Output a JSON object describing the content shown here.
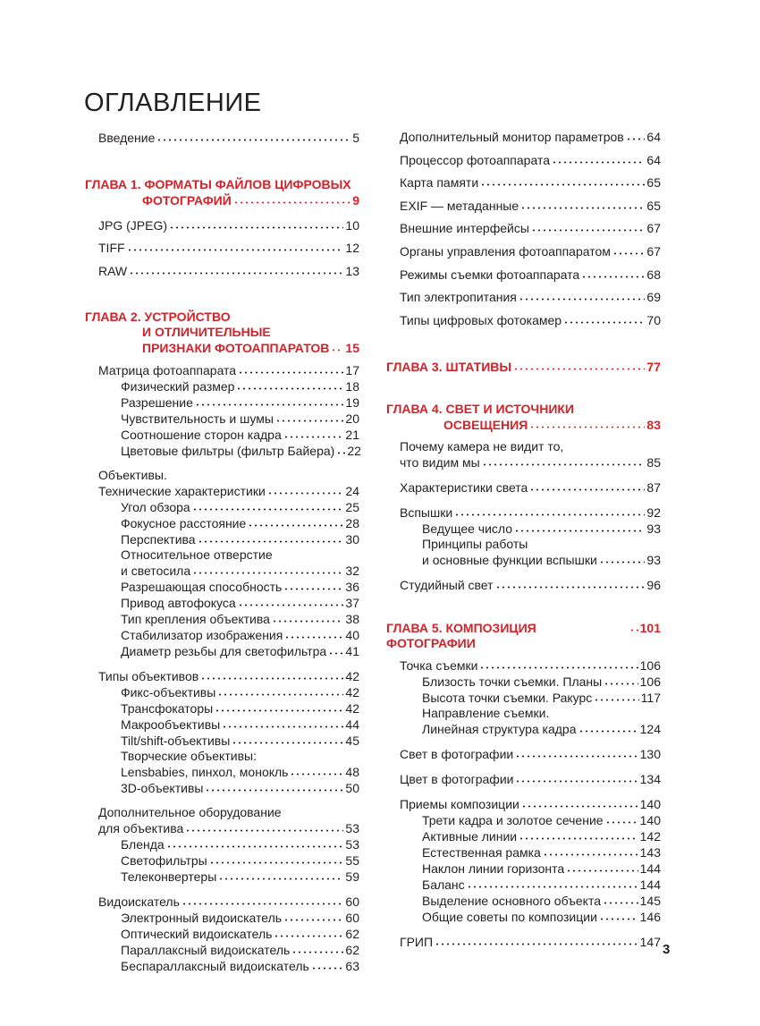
{
  "title": "ОГЛАВЛЕНИЕ",
  "page_number": "3",
  "accent_color": "#d2232a",
  "left": [
    {
      "type": "group",
      "style": "spaced",
      "entries": [
        {
          "level": 0,
          "lines": [
            "Введение"
          ],
          "page": "5"
        }
      ]
    },
    {
      "type": "chapter",
      "lines": [
        "ГЛАВА 1. ФОРМАТЫ ФАЙЛОВ ЦИФРОВЫХ",
        "ФОТОГРАФИЙ"
      ],
      "page": "9"
    },
    {
      "type": "group",
      "style": "spaced",
      "entries": [
        {
          "level": 0,
          "lines": [
            "JPG (JPEG)"
          ],
          "page": "10"
        },
        {
          "level": 0,
          "lines": [
            "TIFF"
          ],
          "page": "12"
        },
        {
          "level": 0,
          "lines": [
            "RAW"
          ],
          "page": "13"
        }
      ]
    },
    {
      "type": "chapter",
      "lines": [
        "ГЛАВА 2. УСТРОЙСТВО",
        "И ОТЛИЧИТЕЛЬНЫЕ",
        "ПРИЗНАКИ ФОТОАППАРАТОВ"
      ],
      "page": "15"
    },
    {
      "type": "group",
      "style": "dense",
      "entries": [
        {
          "level": 0,
          "lines": [
            "Матрица фотоаппарата"
          ],
          "page": "17"
        },
        {
          "level": 1,
          "lines": [
            "Физический размер"
          ],
          "page": "18"
        },
        {
          "level": 1,
          "lines": [
            "Разрешение"
          ],
          "page": "19"
        },
        {
          "level": 1,
          "lines": [
            "Чувствительность и шумы"
          ],
          "page": "20"
        },
        {
          "level": 1,
          "lines": [
            "Соотношение сторон кадра"
          ],
          "page": "21"
        },
        {
          "level": 1,
          "lines": [
            "Цветовые фильтры (фильтр Байера)"
          ],
          "page": "22"
        }
      ]
    },
    {
      "type": "group",
      "style": "dense",
      "entries": [
        {
          "level": 0,
          "lines": [
            "Объективы.",
            "Технические характеристики"
          ],
          "page": "24"
        },
        {
          "level": 1,
          "lines": [
            "Угол обзора"
          ],
          "page": "25"
        },
        {
          "level": 1,
          "lines": [
            "Фокусное расстояние"
          ],
          "page": "28"
        },
        {
          "level": 1,
          "lines": [
            "Перспектива"
          ],
          "page": "30"
        },
        {
          "level": 1,
          "lines": [
            "Относительное отверстие",
            "и светосила"
          ],
          "page": "32"
        },
        {
          "level": 1,
          "lines": [
            "Разрешающая способность"
          ],
          "page": "36"
        },
        {
          "level": 1,
          "lines": [
            "Привод автофокуса"
          ],
          "page": "37"
        },
        {
          "level": 1,
          "lines": [
            "Тип крепления объектива"
          ],
          "page": "38"
        },
        {
          "level": 1,
          "lines": [
            "Стабилизатор изображения"
          ],
          "page": "40"
        },
        {
          "level": 1,
          "lines": [
            "Диаметр резьбы для светофильтра"
          ],
          "page": "41"
        }
      ]
    },
    {
      "type": "group",
      "style": "dense",
      "entries": [
        {
          "level": 0,
          "lines": [
            "Типы объективов"
          ],
          "page": "42"
        },
        {
          "level": 1,
          "lines": [
            "Фикс-объективы"
          ],
          "page": "42"
        },
        {
          "level": 1,
          "lines": [
            "Трансфокаторы"
          ],
          "page": "42"
        },
        {
          "level": 1,
          "lines": [
            "Макрообъективы"
          ],
          "page": "44"
        },
        {
          "level": 1,
          "lines": [
            "Tilt/shift-объективы"
          ],
          "page": "45"
        },
        {
          "level": 1,
          "lines": [
            "Творческие объективы:",
            "Lensbabies, пинхол, монокль"
          ],
          "page": "48"
        },
        {
          "level": 1,
          "lines": [
            "3D-объективы"
          ],
          "page": "50"
        }
      ]
    },
    {
      "type": "group",
      "style": "dense",
      "entries": [
        {
          "level": 0,
          "lines": [
            "Дополнительное оборудование",
            "для объектива"
          ],
          "page": "53"
        },
        {
          "level": 1,
          "lines": [
            "Бленда"
          ],
          "page": "53"
        },
        {
          "level": 1,
          "lines": [
            "Светофильтры"
          ],
          "page": "55"
        },
        {
          "level": 1,
          "lines": [
            "Телеконвертеры"
          ],
          "page": "59"
        }
      ]
    },
    {
      "type": "group",
      "style": "dense",
      "entries": [
        {
          "level": 0,
          "lines": [
            "Видоискатель"
          ],
          "page": "60"
        },
        {
          "level": 1,
          "lines": [
            "Электронный видоискатель"
          ],
          "page": "60"
        },
        {
          "level": 1,
          "lines": [
            "Оптический видоискатель"
          ],
          "page": "62"
        },
        {
          "level": 1,
          "lines": [
            "Параллаксный видоискатель"
          ],
          "page": "62"
        },
        {
          "level": 1,
          "lines": [
            "Беспараллаксный видоискатель"
          ],
          "page": "63"
        }
      ]
    }
  ],
  "right": [
    {
      "type": "group",
      "style": "spaced",
      "entries": [
        {
          "level": 0,
          "lines": [
            "Дополнительный монитор параметров"
          ],
          "page": "64"
        },
        {
          "level": 0,
          "lines": [
            "Процессор фотоаппарата"
          ],
          "page": "64"
        },
        {
          "level": 0,
          "lines": [
            "Карта памяти"
          ],
          "page": "65"
        },
        {
          "level": 0,
          "lines": [
            "EXIF — метаданные"
          ],
          "page": "65"
        },
        {
          "level": 0,
          "lines": [
            "Внешние интерфейсы"
          ],
          "page": "67"
        },
        {
          "level": 0,
          "lines": [
            "Органы управления фотоаппаратом"
          ],
          "page": "67"
        },
        {
          "level": 0,
          "lines": [
            "Режимы съемки фотоаппарата"
          ],
          "page": "68"
        },
        {
          "level": 0,
          "lines": [
            "Тип электропитания"
          ],
          "page": "69"
        },
        {
          "level": 0,
          "lines": [
            "Типы цифровых фотокамер"
          ],
          "page": "70"
        }
      ]
    },
    {
      "type": "chapter",
      "lines": [
        "ГЛАВА 3. ШТАТИВЫ"
      ],
      "page": "77"
    },
    {
      "type": "chapter",
      "lines": [
        "ГЛАВА 4. СВЕТ И ИСТОЧНИКИ",
        "ОСВЕЩЕНИЯ"
      ],
      "page": "83"
    },
    {
      "type": "group",
      "style": "dense",
      "entries": [
        {
          "level": 0,
          "lines": [
            "Почему камера не видит то,",
            "что видим мы"
          ],
          "page": "85"
        }
      ]
    },
    {
      "type": "group",
      "style": "dense",
      "entries": [
        {
          "level": 0,
          "lines": [
            "Характеристики света"
          ],
          "page": "87"
        }
      ]
    },
    {
      "type": "group",
      "style": "dense",
      "entries": [
        {
          "level": 0,
          "lines": [
            "Вспышки"
          ],
          "page": "92"
        },
        {
          "level": 1,
          "lines": [
            "Ведущее число"
          ],
          "page": "93"
        },
        {
          "level": 1,
          "lines": [
            "Принципы работы",
            "и основные функции вспышки"
          ],
          "page": "93"
        }
      ]
    },
    {
      "type": "group",
      "style": "dense",
      "entries": [
        {
          "level": 0,
          "lines": [
            "Студийный свет"
          ],
          "page": "96"
        }
      ]
    },
    {
      "type": "chapter",
      "lines": [
        "ГЛАВА 5. КОМПОЗИЦИЯ ФОТОГРАФИИ"
      ],
      "page": "101"
    },
    {
      "type": "group",
      "style": "dense",
      "entries": [
        {
          "level": 0,
          "lines": [
            "Точка съемки"
          ],
          "page": "106"
        },
        {
          "level": 1,
          "lines": [
            "Близость точки съемки. Планы"
          ],
          "page": "106"
        },
        {
          "level": 1,
          "lines": [
            "Высота точки съемки. Ракурс"
          ],
          "page": "117"
        },
        {
          "level": 1,
          "lines": [
            "Направление съемки.",
            "Линейная структура кадра"
          ],
          "page": "124"
        }
      ]
    },
    {
      "type": "group",
      "style": "dense",
      "entries": [
        {
          "level": 0,
          "lines": [
            "Свет в фотографии"
          ],
          "page": "130"
        }
      ]
    },
    {
      "type": "group",
      "style": "dense",
      "entries": [
        {
          "level": 0,
          "lines": [
            "Цвет в фотографии"
          ],
          "page": "134"
        }
      ]
    },
    {
      "type": "group",
      "style": "dense",
      "entries": [
        {
          "level": 0,
          "lines": [
            "Приемы композиции"
          ],
          "page": "140"
        },
        {
          "level": 1,
          "lines": [
            "Трети кадра и золотое сечение"
          ],
          "page": "140"
        },
        {
          "level": 1,
          "lines": [
            "Активные линии"
          ],
          "page": "142"
        },
        {
          "level": 1,
          "lines": [
            "Естественная рамка"
          ],
          "page": "143"
        },
        {
          "level": 1,
          "lines": [
            "Наклон линии горизонта"
          ],
          "page": "144"
        },
        {
          "level": 1,
          "lines": [
            "Баланс"
          ],
          "page": "144"
        },
        {
          "level": 1,
          "lines": [
            "Выделение основного объекта"
          ],
          "page": "145"
        },
        {
          "level": 1,
          "lines": [
            "Общие советы по композиции"
          ],
          "page": "146"
        }
      ]
    },
    {
      "type": "group",
      "style": "dense",
      "entries": [
        {
          "level": 0,
          "lines": [
            "ГРИП"
          ],
          "page": "147"
        }
      ]
    }
  ]
}
